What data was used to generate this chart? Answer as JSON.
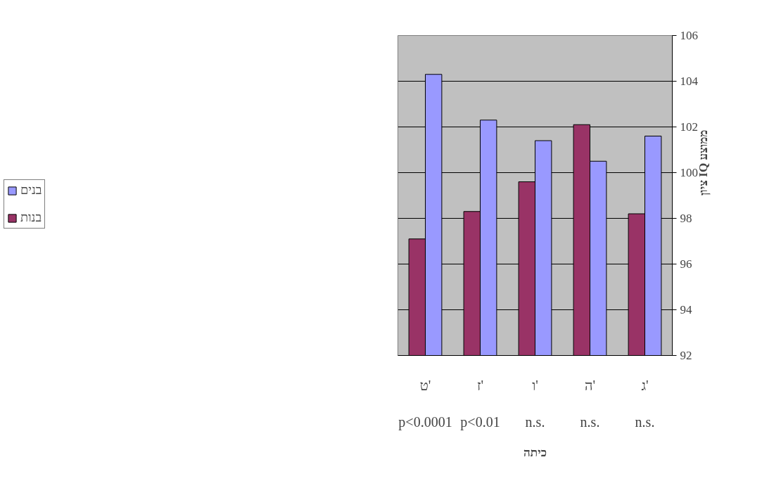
{
  "chart_data": {
    "type": "bar",
    "categories": [
      "ט'",
      "ז'",
      "ו'",
      "ה'",
      "ג'"
    ],
    "xlabel": "כיתה",
    "ylabel": "ציון IQ ממוצע",
    "series": [
      {
        "name": "בנות",
        "color": "#993366",
        "values": [
          97.1,
          98.3,
          99.6,
          102.1,
          98.2
        ]
      },
      {
        "name": "בנים",
        "color": "#9999ff",
        "values": [
          104.3,
          102.3,
          101.4,
          100.5,
          101.6
        ]
      }
    ],
    "ylim": [
      92,
      106
    ],
    "yticks": [
      92,
      94,
      96,
      98,
      100,
      102,
      104,
      106
    ],
    "grid": "y",
    "legend": "left",
    "annotations": [
      "p<0.0001",
      "p<0.01",
      "n.s.",
      "n.s.",
      "n.s."
    ]
  }
}
